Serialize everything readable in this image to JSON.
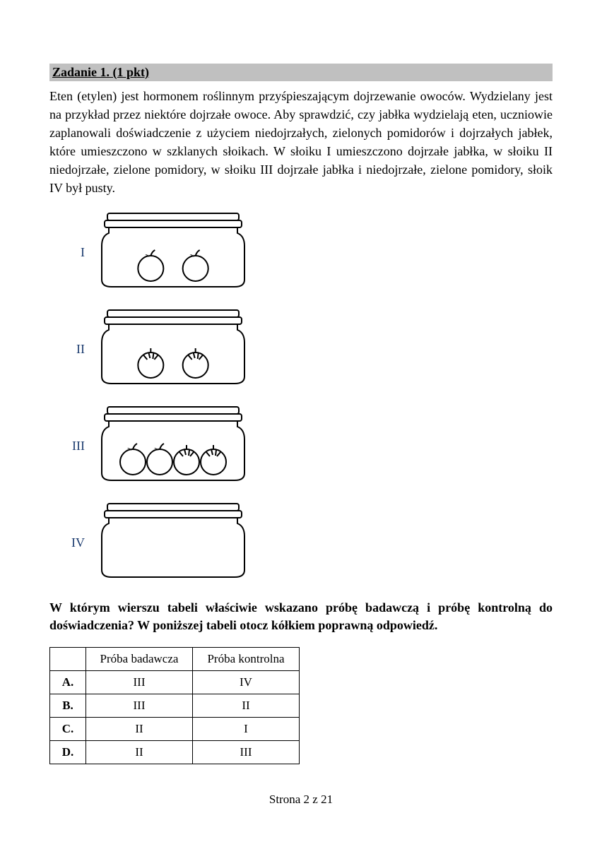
{
  "task_header": "Zadanie 1. (1 pkt)",
  "body_text": "Eten (etylen) jest hormonem roślinnym przyśpieszającym dojrzewanie owoców. Wydzielany jest na przykład przez niektóre dojrzałe owoce. Aby sprawdzić, czy jabłka wydzielają eten, uczniowie zaplanowali doświadczenie z użyciem niedojrzałych, zielonych pomidorów i dojrzałych jabłek, które umieszczono w szklanych słoikach. W słoiku I umieszczono dojrzałe jabłka, w słoiku II niedojrzałe, zielone pomidory, w słoiku III dojrzałe jabłka i niedojrzałe, zielone pomidory, słoik IV był pusty.",
  "jars": [
    {
      "label": "I",
      "contents": [
        "apple",
        "apple"
      ]
    },
    {
      "label": "II",
      "contents": [
        "tomato",
        "tomato"
      ]
    },
    {
      "label": "III",
      "contents": [
        "apple",
        "apple",
        "tomato",
        "tomato"
      ]
    },
    {
      "label": "IV",
      "contents": []
    }
  ],
  "question": "W którym wierszu tabeli właściwie wskazano próbę badawczą i próbę kontrolną do doświadczenia? W poniższej tabeli otocz kółkiem poprawną odpowiedź.",
  "table": {
    "columns": [
      "",
      "Próba badawcza",
      "Próba kontrolna"
    ],
    "rows": [
      {
        "letter": "A.",
        "badawcza": "III",
        "kontrolna": "IV"
      },
      {
        "letter": "B.",
        "badawcza": "III",
        "kontrolna": "II"
      },
      {
        "letter": "C.",
        "badawcza": "II",
        "kontrolna": "I"
      },
      {
        "letter": "D.",
        "badawcza": "II",
        "kontrolna": "III"
      }
    ]
  },
  "footer": "Strona 2 z 21",
  "svg": {
    "jar_stroke": "#000000",
    "jar_fill": "#ffffff",
    "jar_width": 210,
    "jar_height": 110
  }
}
